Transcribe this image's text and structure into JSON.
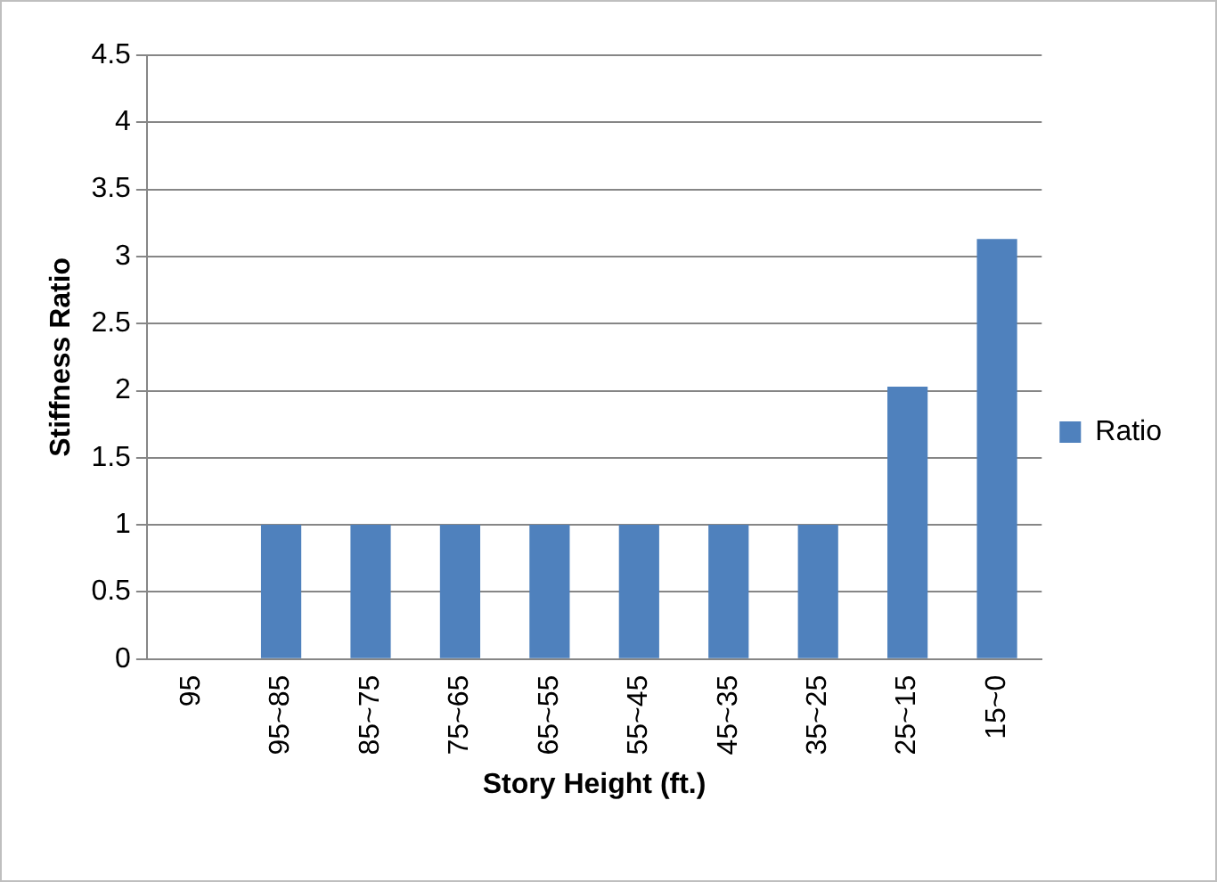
{
  "chart_data": {
    "type": "bar",
    "xlabel": "Story Height (ft.)",
    "ylabel": "Stiffness Ratio",
    "categories": [
      "95",
      "95~85",
      "85~75",
      "75~65",
      "65~55",
      "55~45",
      "45~35",
      "35~25",
      "25~15",
      "15~0"
    ],
    "series": [
      {
        "name": "Ratio",
        "color": "#4f81bd",
        "values": [
          null,
          1,
          1,
          1,
          1,
          1,
          1,
          1,
          2.03,
          3.13
        ]
      }
    ],
    "ylim": [
      0,
      4.5
    ],
    "yticks": [
      0,
      0.5,
      1,
      1.5,
      2,
      2.5,
      3,
      3.5,
      4,
      4.5
    ],
    "grid": "y",
    "legend": "right"
  }
}
